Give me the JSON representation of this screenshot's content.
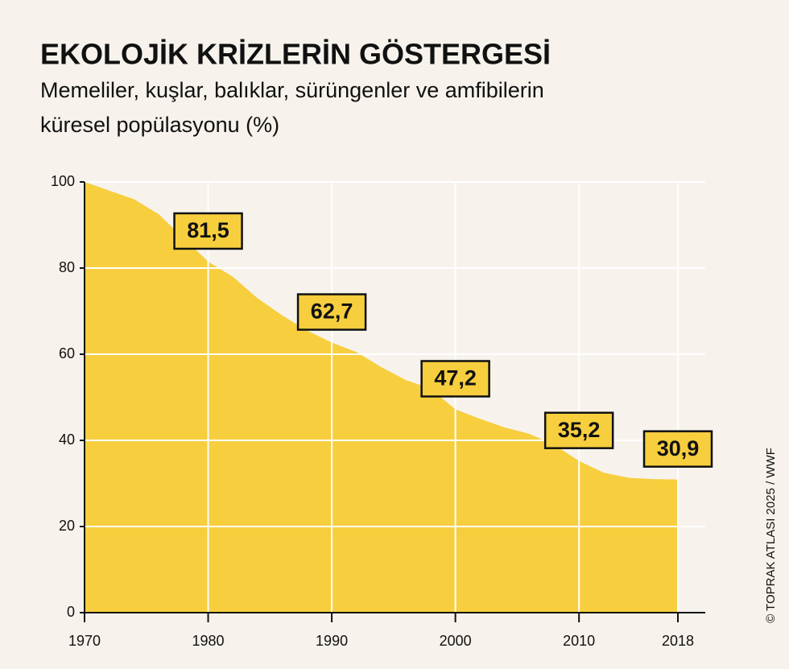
{
  "chart_data": {
    "type": "area",
    "title": "EKOLOJİK KRİZLERİN GÖSTERGESİ",
    "subtitle": [
      "Memeliler, kuşlar, balıklar, sürüngenler ve amfibilerin",
      "küresel popülasyonu (%)"
    ],
    "credit": "© TOPRAK ATLASI 2025 / WWF",
    "x": [
      1970,
      1972,
      1974,
      1976,
      1978,
      1980,
      1982,
      1984,
      1986,
      1988,
      1990,
      1992,
      1994,
      1996,
      1998,
      2000,
      2002,
      2004,
      2006,
      2008,
      2010,
      2012,
      2014,
      2016,
      2018
    ],
    "values": [
      100,
      98,
      96,
      92.5,
      87,
      81.5,
      78,
      73,
      69,
      65.5,
      62.7,
      60.5,
      57,
      54,
      52,
      47.2,
      45,
      43,
      41.5,
      39,
      35.2,
      32.5,
      31.3,
      31,
      30.9
    ],
    "value_labels": [
      null,
      null,
      null,
      null,
      null,
      "81,5",
      null,
      null,
      null,
      null,
      "62,7",
      null,
      null,
      null,
      null,
      "47,2",
      null,
      null,
      null,
      null,
      "35,2",
      null,
      null,
      null,
      "30,9"
    ],
    "color": "#f7ce3e",
    "xlim": [
      1970,
      2018
    ],
    "xticks": [
      1970,
      1980,
      1990,
      2000,
      2010,
      2018
    ],
    "ylim": [
      0,
      100
    ],
    "yticks": [
      0,
      20,
      40,
      60,
      80,
      100
    ],
    "grid": true
  }
}
